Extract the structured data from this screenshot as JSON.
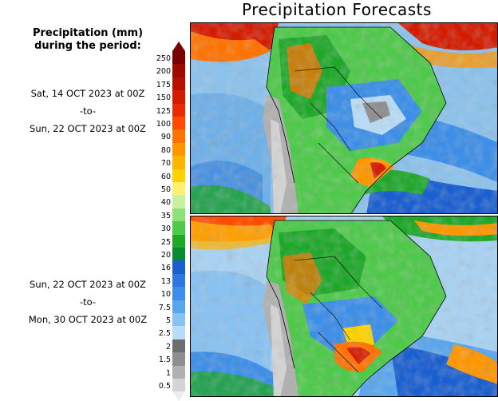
{
  "title": "Precipitation Forecasts",
  "legend_label": "Precipitation (mm)\nduring the period:",
  "periods": [
    {
      "start": "Sat, 14 OCT 2023 at 00Z",
      "sep": "-to-",
      "end": "Sun, 22 OCT 2023 at 00Z"
    },
    {
      "start": "Sun, 22 OCT 2023 at 00Z",
      "sep": "-to-",
      "end": "Mon, 30 OCT 2023 at 00Z"
    }
  ],
  "colorbar": [
    {
      "label": "250",
      "color": "#7a0000"
    },
    {
      "label": "200",
      "color": "#9c0a00"
    },
    {
      "label": "175",
      "color": "#b80f00"
    },
    {
      "label": "150",
      "color": "#d41b00"
    },
    {
      "label": "125",
      "color": "#ea2a00"
    },
    {
      "label": "100",
      "color": "#ff4a00"
    },
    {
      "label": "90",
      "color": "#ff7200"
    },
    {
      "label": "80",
      "color": "#ff9600"
    },
    {
      "label": "70",
      "color": "#ffb400"
    },
    {
      "label": "60",
      "color": "#ffd200"
    },
    {
      "label": "50",
      "color": "#fff070"
    },
    {
      "label": "40",
      "color": "#c8f0a0"
    },
    {
      "label": "35",
      "color": "#8ee07a"
    },
    {
      "label": "30",
      "color": "#4ec94a"
    },
    {
      "label": "25",
      "color": "#1ea82a"
    },
    {
      "label": "20",
      "color": "#0a8a30"
    },
    {
      "label": "16",
      "color": "#1a5fd0"
    },
    {
      "label": "13",
      "color": "#2a78e0"
    },
    {
      "label": "10",
      "color": "#3c8ee8"
    },
    {
      "label": "7.5",
      "color": "#5aa6ee"
    },
    {
      "label": "5",
      "color": "#88c2f2"
    },
    {
      "label": "2.5",
      "color": "#b8dcf6"
    },
    {
      "label": "2",
      "color": "#6e6e6e"
    },
    {
      "label": "1.5",
      "color": "#8e8e8e"
    },
    {
      "label": "1",
      "color": "#b0b0b0"
    },
    {
      "label": "0.5",
      "color": "#d4d4d4"
    }
  ]
}
